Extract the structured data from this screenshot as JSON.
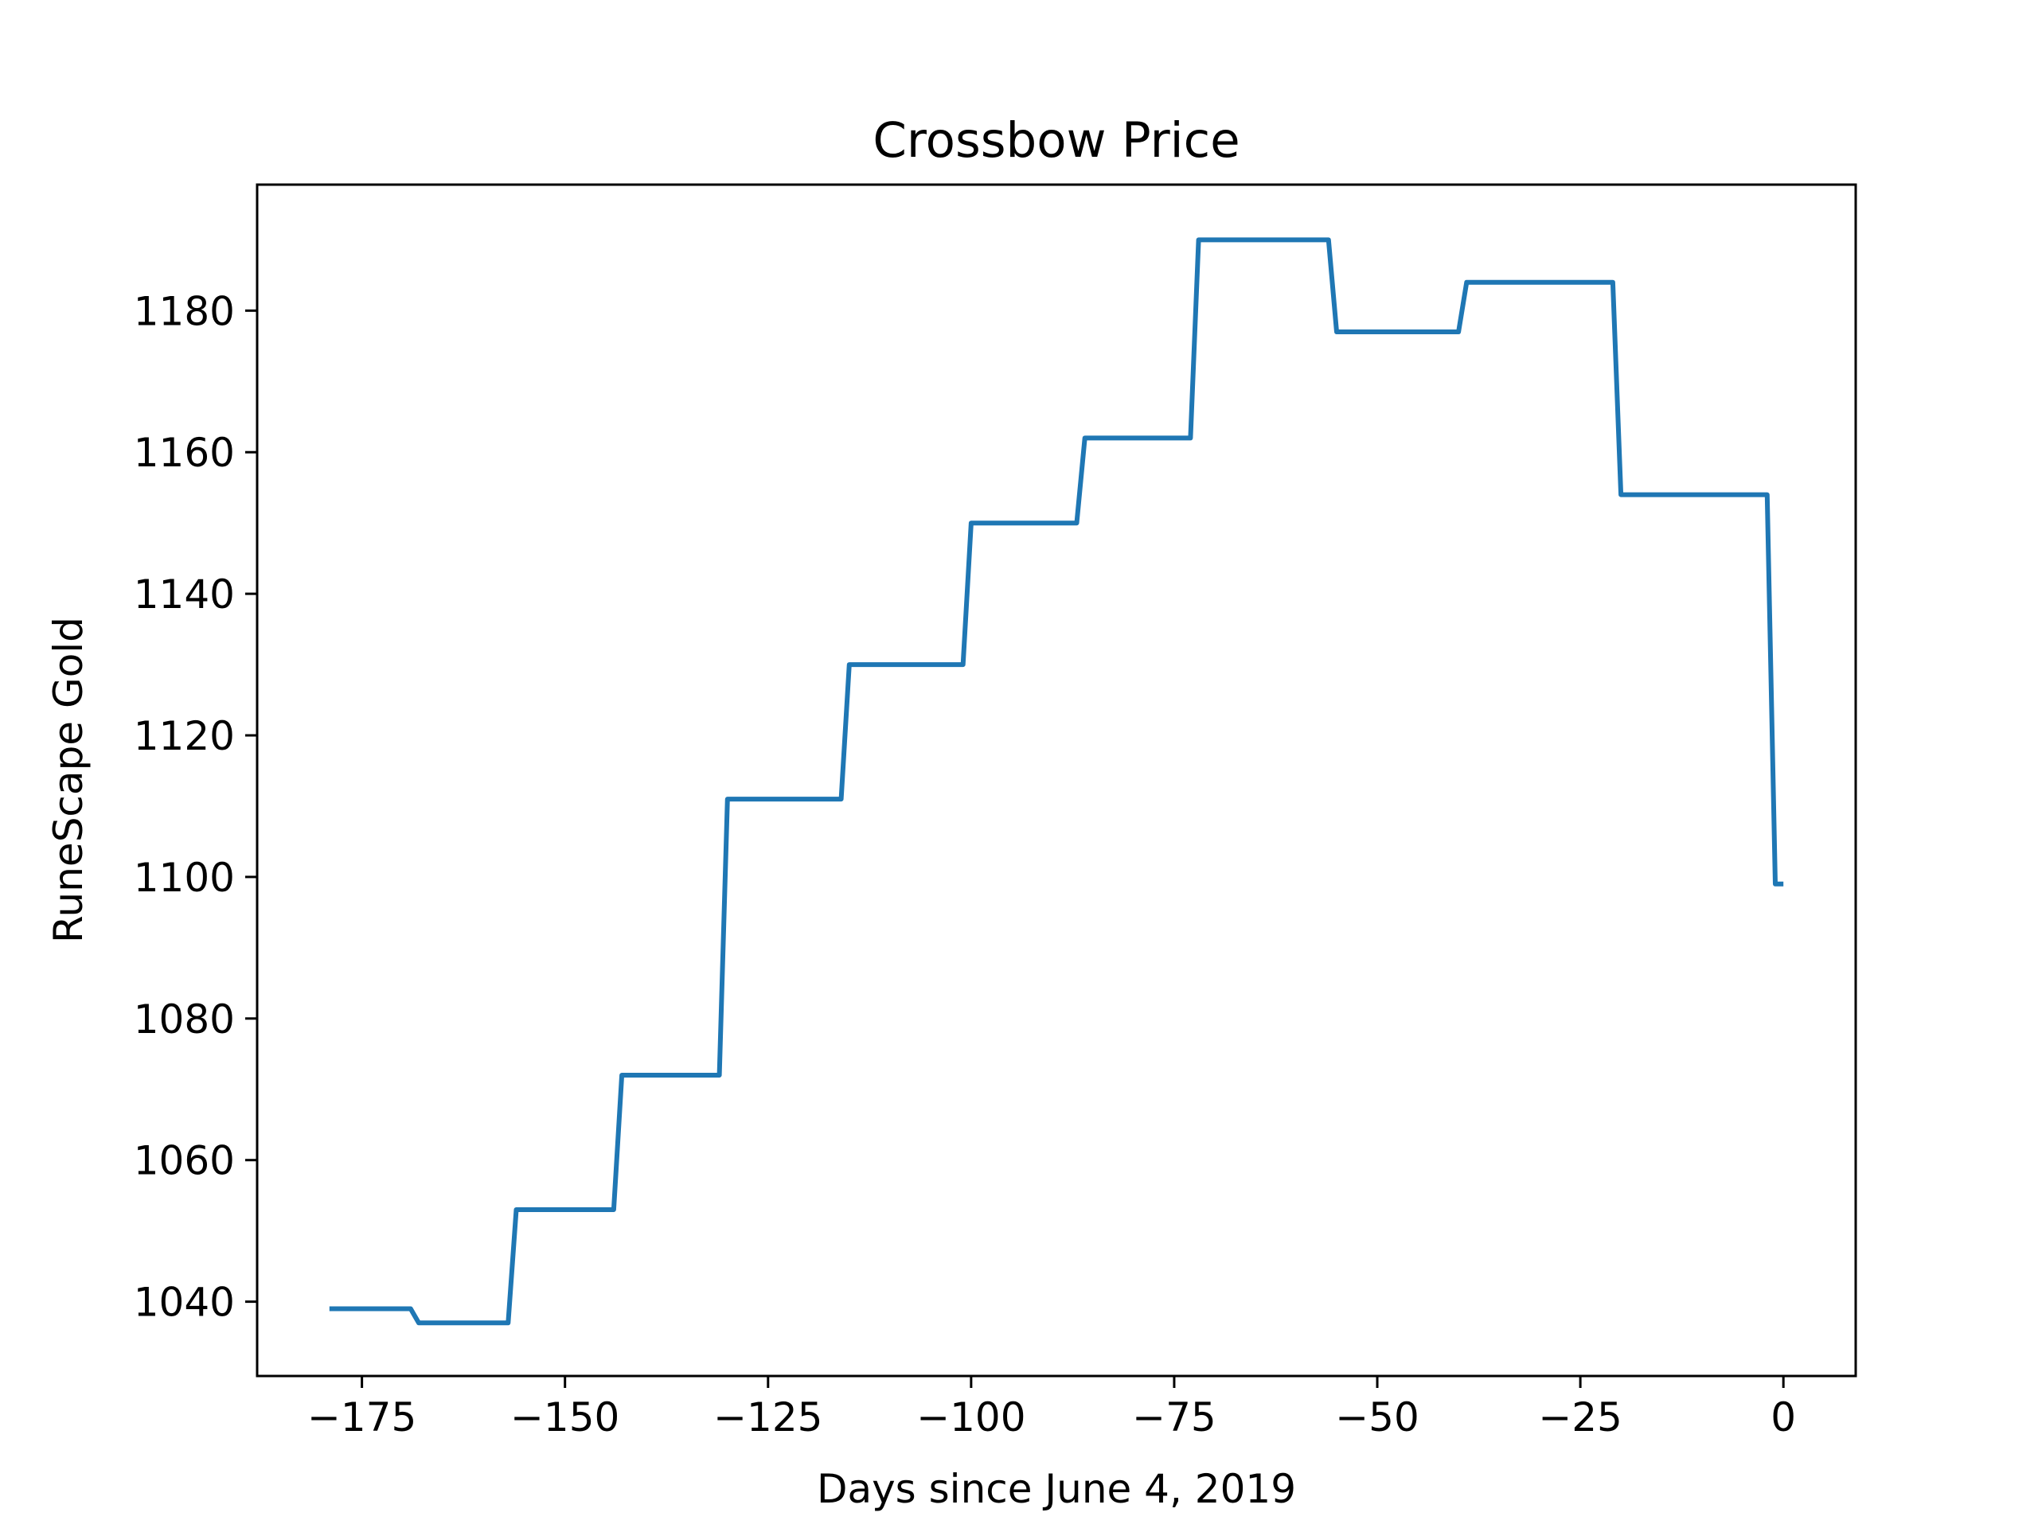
{
  "chart_data": {
    "type": "line",
    "title": "Crossbow Price",
    "xlabel": "Days since June 4, 2019",
    "ylabel": "RuneScape Gold",
    "xlim": [
      -187.9,
      8.9
    ],
    "ylim": [
      1029.5,
      1197.8
    ],
    "xticks": [
      -175,
      -150,
      -125,
      -100,
      -75,
      -50,
      -25,
      0
    ],
    "xtick_labels": [
      "−175",
      "−150",
      "−125",
      "−100",
      "−75",
      "−50",
      "−25",
      "0"
    ],
    "yticks": [
      1040,
      1060,
      1080,
      1100,
      1120,
      1140,
      1160,
      1180
    ],
    "ytick_labels": [
      "1040",
      "1060",
      "1080",
      "1100",
      "1120",
      "1140",
      "1160",
      "1180"
    ],
    "grid": false,
    "series": [
      {
        "color": "#1f77b4",
        "x": [
          -179,
          -169,
          -168,
          -157,
          -156,
          -144,
          -143,
          -131,
          -130,
          -116,
          -115,
          -101,
          -100,
          -87,
          -86,
          -73,
          -72,
          -56,
          -55,
          -40,
          -39,
          -21,
          -20,
          -2,
          -1,
          0
        ],
        "y": [
          1039,
          1039,
          1037,
          1037,
          1053,
          1053,
          1072,
          1072,
          1111,
          1111,
          1130,
          1130,
          1150,
          1150,
          1162,
          1162,
          1190,
          1190,
          1177,
          1177,
          1184,
          1184,
          1154,
          1154,
          1099,
          1099
        ]
      }
    ]
  }
}
